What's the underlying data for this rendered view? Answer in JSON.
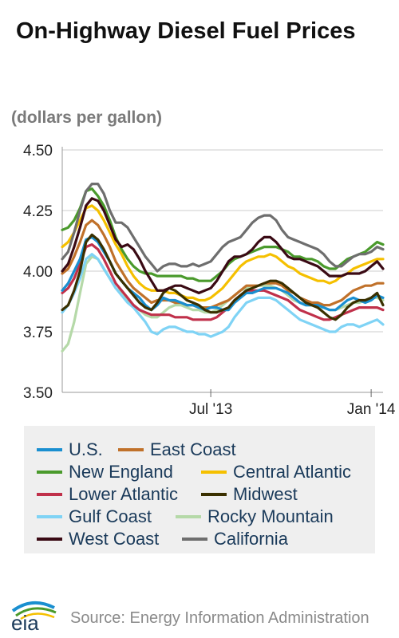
{
  "header": {
    "title": "On-Highway Diesel Fuel Prices",
    "subtitle": "(dollars per gallon)"
  },
  "footer": {
    "logo_text": "eia",
    "source": "Source: Energy Information Administration"
  },
  "chart_data": {
    "type": "line",
    "title": "On-Highway Diesel Fuel Prices",
    "ylabel": "(dollars per gallon)",
    "xlabel": "",
    "ylim": [
      3.5,
      4.5
    ],
    "x_range": [
      "2013-01-07",
      "2014-01-20"
    ],
    "yticks": [
      "3.50",
      "3.75",
      "4.00",
      "4.25",
      "4.50"
    ],
    "xticks": [
      {
        "label": "Jul '13",
        "date": "2013-07-01"
      },
      {
        "label": "Jan '14",
        "date": "2014-01-06"
      }
    ],
    "grid": "horizontal",
    "legend_position": "bottom",
    "x": [
      "2013-01-07",
      "2013-01-14",
      "2013-01-21",
      "2013-01-28",
      "2013-02-04",
      "2013-02-11",
      "2013-02-18",
      "2013-02-25",
      "2013-03-04",
      "2013-03-11",
      "2013-03-18",
      "2013-03-25",
      "2013-04-01",
      "2013-04-08",
      "2013-04-15",
      "2013-04-22",
      "2013-04-29",
      "2013-05-06",
      "2013-05-13",
      "2013-05-20",
      "2013-05-27",
      "2013-06-03",
      "2013-06-10",
      "2013-06-17",
      "2013-06-24",
      "2013-07-01",
      "2013-07-08",
      "2013-07-15",
      "2013-07-22",
      "2013-07-29",
      "2013-08-05",
      "2013-08-12",
      "2013-08-19",
      "2013-08-26",
      "2013-09-02",
      "2013-09-09",
      "2013-09-16",
      "2013-09-23",
      "2013-09-30",
      "2013-10-07",
      "2013-10-14",
      "2013-10-21",
      "2013-10-28",
      "2013-11-04",
      "2013-11-11",
      "2013-11-18",
      "2013-11-25",
      "2013-12-02",
      "2013-12-09",
      "2013-12-16",
      "2013-12-23",
      "2013-12-30",
      "2014-01-06",
      "2014-01-13",
      "2014-01-20"
    ],
    "series": [
      {
        "name": "U.S.",
        "color": "#1a8fd0",
        "values": [
          3.92,
          3.95,
          4.0,
          4.05,
          4.13,
          4.14,
          4.12,
          4.08,
          4.04,
          3.99,
          3.96,
          3.93,
          3.91,
          3.89,
          3.86,
          3.84,
          3.86,
          3.89,
          3.88,
          3.88,
          3.87,
          3.86,
          3.86,
          3.85,
          3.84,
          3.85,
          3.85,
          3.84,
          3.84,
          3.87,
          3.89,
          3.91,
          3.91,
          3.92,
          3.93,
          3.93,
          3.93,
          3.92,
          3.91,
          3.89,
          3.87,
          3.86,
          3.86,
          3.86,
          3.85,
          3.84,
          3.84,
          3.86,
          3.88,
          3.89,
          3.88,
          3.87,
          3.88,
          3.9,
          3.89
        ]
      },
      {
        "name": "East Coast",
        "color": "#c0712a",
        "values": [
          3.99,
          4.01,
          4.06,
          4.12,
          4.19,
          4.21,
          4.19,
          4.15,
          4.1,
          4.04,
          4.0,
          3.96,
          3.93,
          3.91,
          3.89,
          3.87,
          3.88,
          3.88,
          3.88,
          3.87,
          3.87,
          3.86,
          3.86,
          3.85,
          3.85,
          3.85,
          3.86,
          3.87,
          3.88,
          3.9,
          3.92,
          3.94,
          3.94,
          3.94,
          3.95,
          3.95,
          3.95,
          3.94,
          3.92,
          3.91,
          3.89,
          3.88,
          3.87,
          3.87,
          3.86,
          3.86,
          3.87,
          3.88,
          3.9,
          3.92,
          3.93,
          3.94,
          3.94,
          3.95,
          3.95
        ]
      },
      {
        "name": "New England",
        "color": "#4a9a2c",
        "values": [
          4.17,
          4.18,
          4.21,
          4.26,
          4.33,
          4.34,
          4.31,
          4.27,
          4.21,
          4.14,
          4.09,
          4.05,
          4.02,
          4.0,
          3.99,
          3.99,
          3.98,
          3.98,
          3.98,
          3.98,
          3.98,
          3.97,
          3.97,
          3.96,
          3.96,
          3.96,
          3.98,
          4.0,
          4.03,
          4.05,
          4.06,
          4.07,
          4.08,
          4.09,
          4.1,
          4.1,
          4.1,
          4.09,
          4.08,
          4.06,
          4.06,
          4.05,
          4.05,
          4.04,
          4.02,
          4.01,
          4.01,
          4.03,
          4.05,
          4.06,
          4.07,
          4.08,
          4.1,
          4.12,
          4.11
        ]
      },
      {
        "name": "Central Atlantic",
        "color": "#f5c000",
        "values": [
          4.1,
          4.12,
          4.16,
          4.21,
          4.26,
          4.27,
          4.25,
          4.21,
          4.16,
          4.11,
          4.07,
          4.02,
          3.98,
          3.95,
          3.93,
          3.92,
          3.92,
          3.92,
          3.91,
          3.91,
          3.9,
          3.89,
          3.89,
          3.88,
          3.88,
          3.89,
          3.91,
          3.93,
          3.96,
          3.99,
          4.02,
          4.04,
          4.05,
          4.06,
          4.06,
          4.07,
          4.06,
          4.04,
          4.02,
          4.01,
          3.99,
          3.98,
          3.97,
          3.96,
          3.96,
          3.95,
          3.96,
          3.98,
          3.99,
          4.01,
          4.02,
          4.03,
          4.04,
          4.05,
          4.05
        ]
      },
      {
        "name": "Lower Atlantic",
        "color": "#c0304a",
        "values": [
          3.91,
          3.93,
          3.97,
          4.03,
          4.1,
          4.11,
          4.09,
          4.05,
          4.0,
          3.95,
          3.92,
          3.89,
          3.86,
          3.84,
          3.83,
          3.82,
          3.82,
          3.82,
          3.82,
          3.81,
          3.81,
          3.81,
          3.8,
          3.8,
          3.8,
          3.8,
          3.81,
          3.83,
          3.85,
          3.88,
          3.9,
          3.92,
          3.92,
          3.92,
          3.92,
          3.91,
          3.9,
          3.89,
          3.88,
          3.86,
          3.84,
          3.83,
          3.82,
          3.81,
          3.8,
          3.8,
          3.81,
          3.82,
          3.83,
          3.84,
          3.85,
          3.85,
          3.85,
          3.85,
          3.84
        ]
      },
      {
        "name": "Midwest",
        "color": "#3a3000",
        "values": [
          3.84,
          3.86,
          3.92,
          4.0,
          4.12,
          4.15,
          4.13,
          4.09,
          4.04,
          3.99,
          3.96,
          3.93,
          3.9,
          3.87,
          3.85,
          3.84,
          3.87,
          3.91,
          3.93,
          3.92,
          3.9,
          3.88,
          3.87,
          3.86,
          3.84,
          3.83,
          3.83,
          3.84,
          3.85,
          3.88,
          3.9,
          3.92,
          3.93,
          3.94,
          3.95,
          3.96,
          3.96,
          3.95,
          3.93,
          3.91,
          3.89,
          3.87,
          3.86,
          3.85,
          3.83,
          3.81,
          3.8,
          3.82,
          3.85,
          3.87,
          3.88,
          3.88,
          3.89,
          3.91,
          3.86
        ]
      },
      {
        "name": "Gulf Coast",
        "color": "#7fd3f5",
        "values": [
          3.83,
          3.86,
          3.91,
          3.97,
          4.05,
          4.07,
          4.05,
          4.01,
          3.97,
          3.93,
          3.9,
          3.87,
          3.85,
          3.82,
          3.79,
          3.75,
          3.74,
          3.76,
          3.77,
          3.77,
          3.76,
          3.75,
          3.75,
          3.74,
          3.74,
          3.73,
          3.74,
          3.75,
          3.77,
          3.81,
          3.84,
          3.87,
          3.88,
          3.89,
          3.89,
          3.89,
          3.88,
          3.86,
          3.84,
          3.82,
          3.8,
          3.79,
          3.78,
          3.77,
          3.76,
          3.75,
          3.75,
          3.77,
          3.78,
          3.78,
          3.77,
          3.78,
          3.79,
          3.8,
          3.78
        ]
      },
      {
        "name": "Rocky Mountain",
        "color": "#b5d9a8",
        "values": [
          3.67,
          3.7,
          3.79,
          3.91,
          4.03,
          4.06,
          4.05,
          4.01,
          3.97,
          3.93,
          3.91,
          3.88,
          3.86,
          3.84,
          3.82,
          3.81,
          3.81,
          3.83,
          3.85,
          3.86,
          3.86,
          3.85,
          3.84,
          3.84,
          3.83,
          3.83,
          3.84,
          3.86,
          3.88,
          3.9,
          3.92,
          3.93,
          3.93,
          3.94,
          3.94,
          3.94,
          3.93,
          3.92,
          3.9,
          3.88,
          3.87,
          3.86,
          3.86,
          3.85,
          3.85,
          3.84,
          3.84,
          3.85,
          3.86,
          3.87,
          3.87,
          3.88,
          3.89,
          3.89,
          3.88
        ]
      },
      {
        "name": "West Coast",
        "color": "#3a0a14",
        "values": [
          4.0,
          4.03,
          4.1,
          4.18,
          4.27,
          4.3,
          4.29,
          4.25,
          4.19,
          4.13,
          4.1,
          4.11,
          4.09,
          4.05,
          4.0,
          3.96,
          3.92,
          3.92,
          3.93,
          3.94,
          3.94,
          3.93,
          3.92,
          3.91,
          3.92,
          3.93,
          3.96,
          4.0,
          4.04,
          4.06,
          4.06,
          4.07,
          4.09,
          4.12,
          4.14,
          4.14,
          4.12,
          4.09,
          4.06,
          4.05,
          4.05,
          4.04,
          4.03,
          4.02,
          4.0,
          3.98,
          3.98,
          3.98,
          3.99,
          3.99,
          3.99,
          4.0,
          4.02,
          4.04,
          4.01
        ]
      },
      {
        "name": "California",
        "color": "#6e6e6e",
        "values": [
          4.05,
          4.08,
          4.16,
          4.25,
          4.33,
          4.36,
          4.36,
          4.32,
          4.25,
          4.2,
          4.2,
          4.18,
          4.14,
          4.1,
          4.06,
          4.03,
          4.0,
          4.02,
          4.03,
          4.03,
          4.02,
          4.02,
          4.03,
          4.02,
          4.03,
          4.04,
          4.07,
          4.1,
          4.12,
          4.13,
          4.14,
          4.17,
          4.2,
          4.22,
          4.23,
          4.23,
          4.21,
          4.17,
          4.14,
          4.13,
          4.12,
          4.11,
          4.1,
          4.09,
          4.07,
          4.04,
          4.02,
          4.02,
          4.04,
          4.06,
          4.07,
          4.07,
          4.08,
          4.1,
          4.09
        ]
      }
    ]
  }
}
